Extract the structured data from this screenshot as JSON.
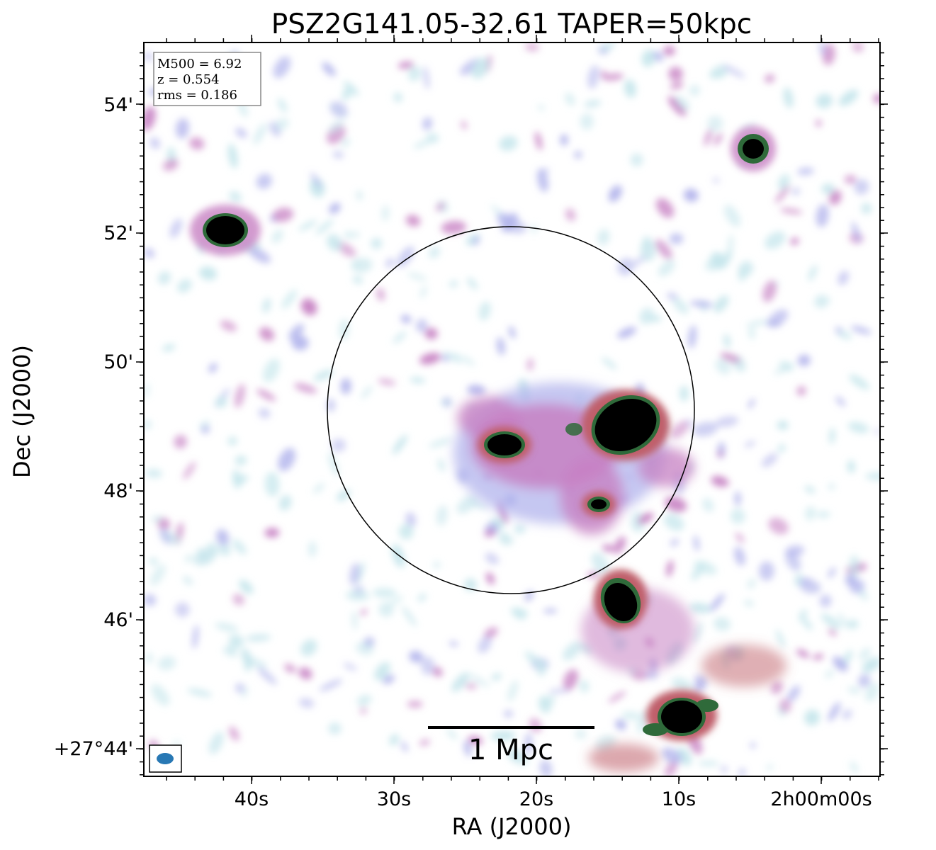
{
  "figure": {
    "title": "PSZ2G141.05-32.61 TAPER=50kpc",
    "xlabel": "RA (J2000)",
    "ylabel": "Dec (J2000)",
    "x_tick_labels": [
      "40s",
      "30s",
      "20s",
      "10s",
      "2h00m00s"
    ],
    "y_tick_labels": [
      "54'",
      "52'",
      "50'",
      "48'",
      "46'",
      "+27°44'"
    ],
    "info_box": {
      "m500": "M500 = 6.92",
      "z": "z = 0.554",
      "rms": "rms = 0.186"
    },
    "scalebar_label": "1 Mpc",
    "colors": {
      "faint": "#c6e6ec",
      "low": "#b2b4ec",
      "mid": "#c781c3",
      "high": "#bf5f6a",
      "edge": "#2f6a3a",
      "core": "#000000",
      "beam": "#2878b4"
    }
  }
}
